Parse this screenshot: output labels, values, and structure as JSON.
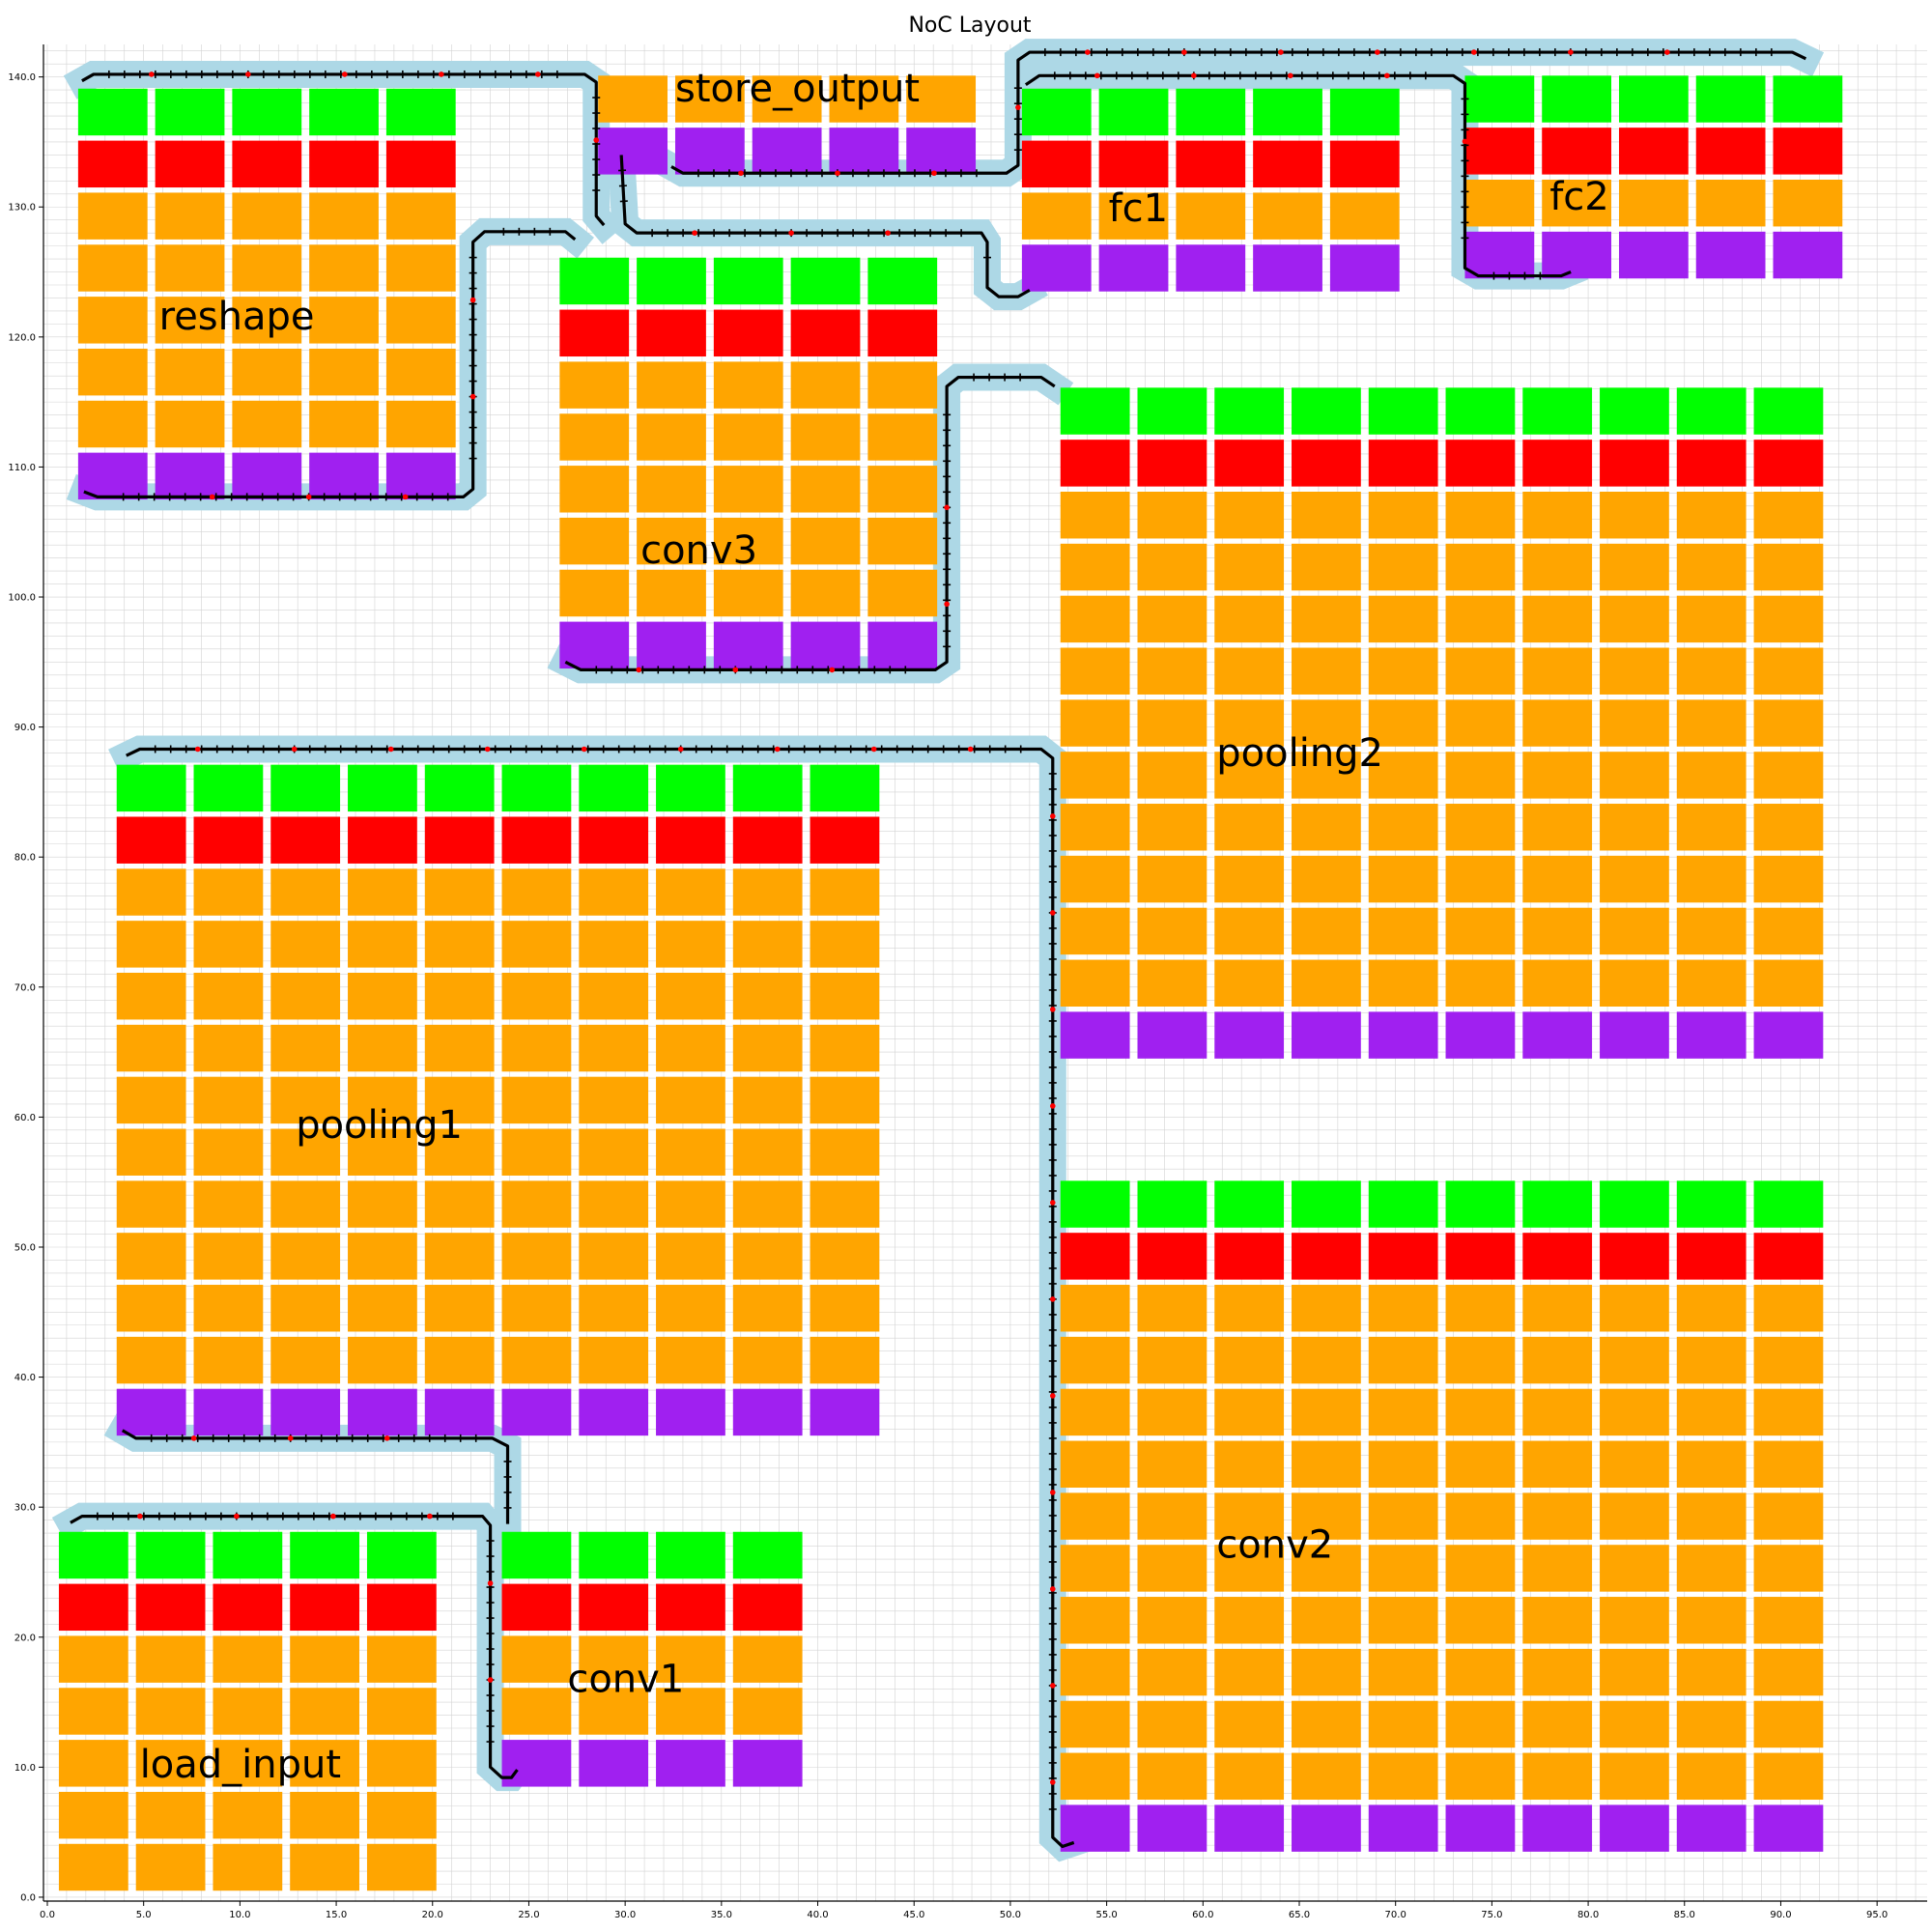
{
  "title": "NoC Layout",
  "colors": {
    "green": "#00ff00",
    "red": "#ff0000",
    "orange": "#ffa500",
    "purple": "#a020f0",
    "halo": "#add8e6",
    "link": "#000000",
    "packet": "#ff0000",
    "grid": "#d3d3d3"
  },
  "chart_data": {
    "type": "diagram",
    "axes": {
      "x_ticks": [
        "0.0",
        "5.0",
        "10.0",
        "15.0",
        "20.0",
        "25.0",
        "30.0",
        "35.0",
        "40.0",
        "45.0",
        "50.0",
        "55.0",
        "60.0",
        "65.0",
        "70.0",
        "75.0",
        "80.0",
        "85.0",
        "90.0",
        "95.0"
      ],
      "y_ticks": [
        "0.0",
        "10.0",
        "20.0",
        "30.0",
        "40.0",
        "50.0",
        "60.0",
        "70.0",
        "80.0",
        "90.0",
        "100.0",
        "110.0",
        "120.0",
        "130.0",
        "140.0"
      ],
      "xlim": [
        -0.2,
        97.6
      ],
      "ylim": [
        -0.3,
        142.5
      ],
      "grid": true
    },
    "blocks": [
      {
        "name": "load_input",
        "label": "load_input",
        "x0": 0.6,
        "y0": 0.5,
        "cols": 5,
        "rows": [
          "G",
          "R",
          "O",
          "O",
          "O",
          "O",
          "O"
        ]
      },
      {
        "name": "conv1",
        "label": "conv1",
        "x0": 23.6,
        "y0": 8.5,
        "cols": 4,
        "rows": [
          "G",
          "R",
          "O",
          "O",
          "P"
        ]
      },
      {
        "name": "conv2",
        "label": "conv2",
        "x0": 52.6,
        "y0": 3.5,
        "cols": 10,
        "rows": [
          "G",
          "R",
          "O",
          "O",
          "O",
          "O",
          "O",
          "O",
          "O",
          "O",
          "O",
          "O",
          "P"
        ]
      },
      {
        "name": "pooling1",
        "label": "pooling1",
        "x0": 3.6,
        "y0": 35.5,
        "cols": 10,
        "rows": [
          "G",
          "R",
          "O",
          "O",
          "O",
          "O",
          "O",
          "O",
          "O",
          "O",
          "O",
          "O",
          "P"
        ]
      },
      {
        "name": "pooling2",
        "label": "pooling2",
        "x0": 52.6,
        "y0": 64.5,
        "cols": 10,
        "rows": [
          "G",
          "R",
          "O",
          "O",
          "O",
          "O",
          "O",
          "O",
          "O",
          "O",
          "O",
          "O",
          "P"
        ]
      },
      {
        "name": "conv3",
        "label": "conv3",
        "x0": 26.6,
        "y0": 94.5,
        "cols": 5,
        "rows": [
          "G",
          "R",
          "O",
          "O",
          "O",
          "O",
          "O",
          "P"
        ]
      },
      {
        "name": "reshape",
        "label": "reshape",
        "x0": 1.6,
        "y0": 107.5,
        "cols": 5,
        "rows": [
          "G",
          "R",
          "O",
          "O",
          "O",
          "O",
          "O",
          "P"
        ]
      },
      {
        "name": "store_output",
        "label": "store_output",
        "x0": 28.6,
        "y0": 132.5,
        "cols": 5,
        "rows": [
          "O",
          "P"
        ]
      },
      {
        "name": "fc1",
        "label": "fc1",
        "x0": 50.6,
        "y0": 123.5,
        "cols": 5,
        "rows": [
          "G",
          "R",
          "O",
          "P"
        ]
      },
      {
        "name": "fc2",
        "label": "fc2",
        "x0": 73.6,
        "y0": 124.5,
        "cols": 5,
        "rows": [
          "G",
          "R",
          "O",
          "P"
        ]
      }
    ],
    "labels_pos": [
      {
        "text": "load_input",
        "x": 4.8,
        "y": 9.2
      },
      {
        "text": "conv1",
        "x": 27.0,
        "y": 15.8
      },
      {
        "text": "conv2",
        "x": 60.7,
        "y": 26.1
      },
      {
        "text": "pooling1",
        "x": 12.9,
        "y": 58.4
      },
      {
        "text": "pooling2",
        "x": 60.7,
        "y": 87.0
      },
      {
        "text": "conv3",
        "x": 30.8,
        "y": 102.6
      },
      {
        "text": "reshape",
        "x": 5.8,
        "y": 120.6
      },
      {
        "text": "store_output",
        "x": 32.6,
        "y": 138.1
      },
      {
        "text": "fc1",
        "x": 55.1,
        "y": 128.9
      },
      {
        "text": "fc2",
        "x": 78.0,
        "y": 129.8
      }
    ],
    "routes": [
      {
        "from": "load_input",
        "to": "conv1",
        "points": [
          [
            1.2,
            28.8
          ],
          [
            1.8,
            29.3
          ],
          [
            22.6,
            29.3
          ],
          [
            23.0,
            28.6
          ],
          [
            23.0,
            10.0
          ],
          [
            23.6,
            9.2
          ],
          [
            24.1,
            9.2
          ],
          [
            24.4,
            9.8
          ]
        ]
      },
      {
        "from": "pooling1",
        "to": "conv1",
        "points": [
          [
            3.9,
            35.9
          ],
          [
            4.6,
            35.3
          ],
          [
            23.1,
            35.3
          ],
          [
            23.9,
            34.7
          ],
          [
            23.9,
            28.7
          ]
        ]
      },
      {
        "from": "pooling1",
        "to": "conv2",
        "points": [
          [
            4.1,
            87.8
          ],
          [
            4.8,
            88.3
          ],
          [
            51.6,
            88.3
          ],
          [
            52.2,
            87.6
          ],
          [
            52.2,
            4.6
          ],
          [
            52.7,
            3.9
          ],
          [
            53.3,
            4.2
          ]
        ]
      },
      {
        "from": "conv3",
        "to": "pooling2",
        "points": [
          [
            26.9,
            95.0
          ],
          [
            27.7,
            94.4
          ],
          [
            46.1,
            94.4
          ],
          [
            46.7,
            95.0
          ],
          [
            46.7,
            116.2
          ],
          [
            47.3,
            116.9
          ],
          [
            51.6,
            116.9
          ],
          [
            52.3,
            116.2
          ]
        ]
      },
      {
        "from": "conv3",
        "to": "reshape",
        "points": [
          [
            27.4,
            127.5
          ],
          [
            26.9,
            128.1
          ],
          [
            22.7,
            128.1
          ],
          [
            22.1,
            127.3
          ],
          [
            22.1,
            108.3
          ],
          [
            21.6,
            107.7
          ],
          [
            2.6,
            107.7
          ],
          [
            1.9,
            108.1
          ]
        ]
      },
      {
        "from": "store_output",
        "to": "conv3",
        "points": [
          [
            29.8,
            134.0
          ],
          [
            30.0,
            128.7
          ],
          [
            30.6,
            128.0
          ],
          [
            48.5,
            128.0
          ],
          [
            48.8,
            127.3
          ],
          [
            48.8,
            123.8
          ],
          [
            49.4,
            123.1
          ],
          [
            50.4,
            123.1
          ],
          [
            51.0,
            123.6
          ]
        ]
      },
      {
        "from": "reshape",
        "to": "store_output",
        "points": [
          [
            1.8,
            139.7
          ],
          [
            2.4,
            140.2
          ],
          [
            27.9,
            140.2
          ],
          [
            28.5,
            139.6
          ],
          [
            28.5,
            129.3
          ],
          [
            28.9,
            128.6
          ]
        ]
      },
      {
        "from": "store_output",
        "to": "fc1",
        "points": [
          [
            32.4,
            133.1
          ],
          [
            33.0,
            132.6
          ],
          [
            49.8,
            132.6
          ],
          [
            50.4,
            133.2
          ],
          [
            50.4,
            141.3
          ],
          [
            51.0,
            141.9
          ],
          [
            90.6,
            141.9
          ],
          [
            91.3,
            141.4
          ]
        ]
      },
      {
        "from": "fc1",
        "to": "fc2",
        "points": [
          [
            50.8,
            139.4
          ],
          [
            51.5,
            140.1
          ],
          [
            73.0,
            140.1
          ],
          [
            73.6,
            139.5
          ],
          [
            73.6,
            125.3
          ],
          [
            74.3,
            124.7
          ],
          [
            78.6,
            124.7
          ],
          [
            79.1,
            125.0
          ]
        ]
      }
    ]
  }
}
